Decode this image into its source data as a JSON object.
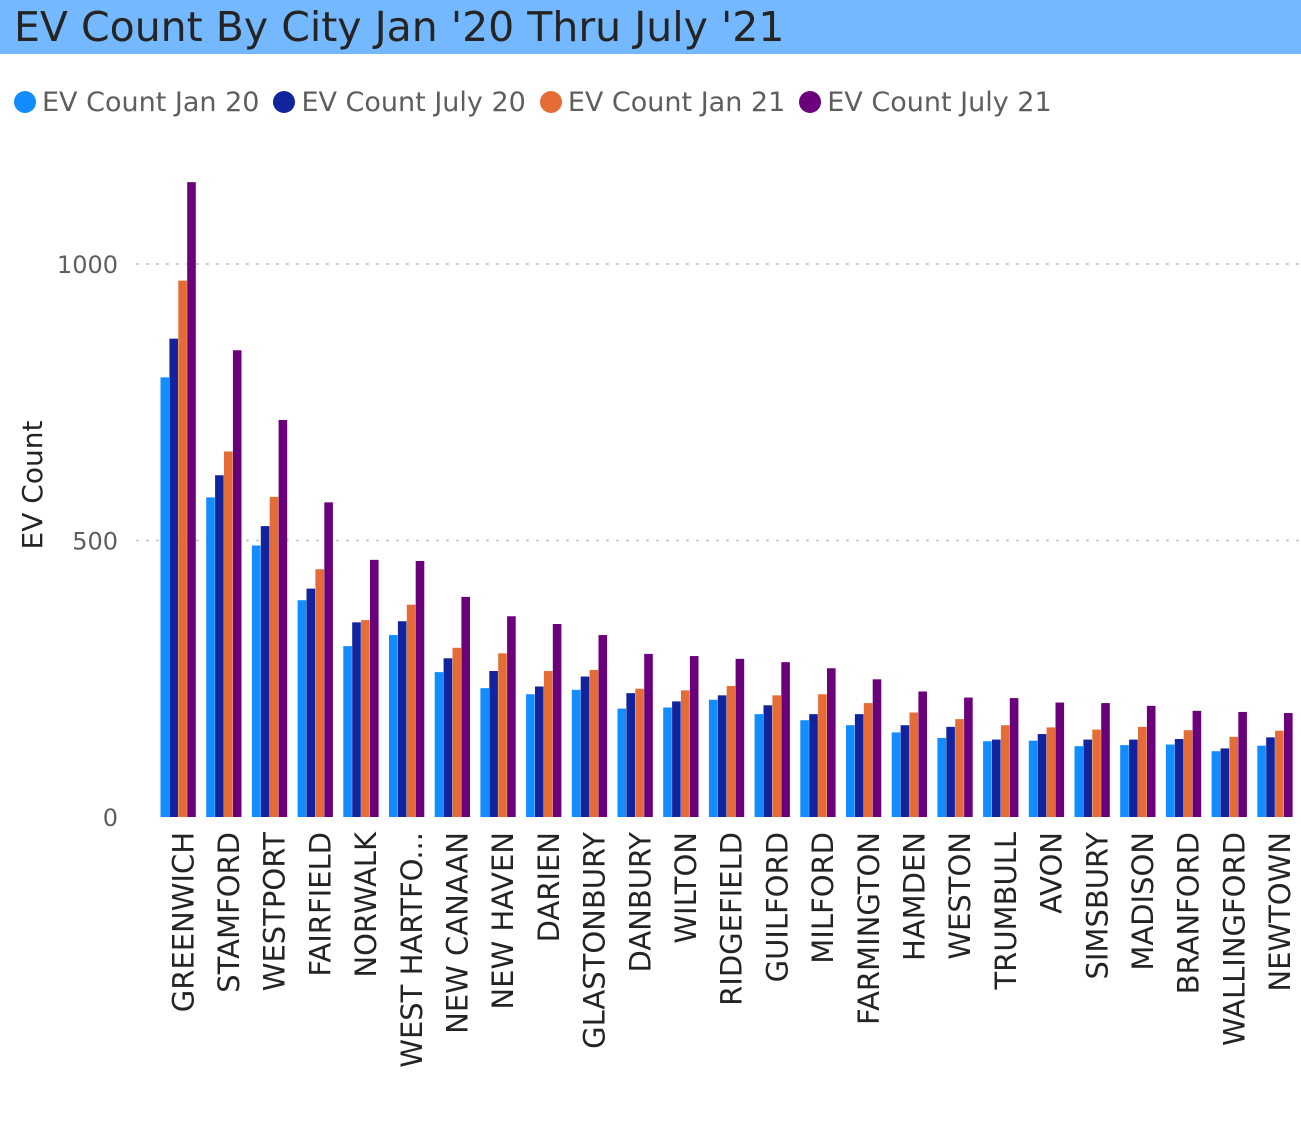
{
  "title": "EV Count By City Jan '20 Thru July '21",
  "colors": {
    "title_bar": "#74b9ff",
    "series": [
      "#118dff",
      "#12239e",
      "#e66c37",
      "#6b007b"
    ]
  },
  "chart_data": {
    "type": "bar",
    "title": "EV Count By City Jan '20 Thru July '21",
    "xlabel": "",
    "ylabel": "EV Count",
    "ylim": [
      0,
      1150
    ],
    "yticks": [
      0,
      500,
      1000
    ],
    "grid": true,
    "legend": "top-left",
    "categories": [
      "GREENWICH",
      "STAMFORD",
      "WESTPORT",
      "FAIRFIELD",
      "NORWALK",
      "WEST HARTFO...",
      "NEW CANAAN",
      "NEW HAVEN",
      "DARIEN",
      "GLASTONBURY",
      "DANBURY",
      "WILTON",
      "RIDGEFIELD",
      "GUILFORD",
      "MILFORD",
      "FARMINGTON",
      "HAMDEN",
      "WESTON",
      "TRUMBULL",
      "AVON",
      "SIMSBURY",
      "MADISON",
      "BRANFORD",
      "WALLINGFORD",
      "NEWTOWN"
    ],
    "series": [
      {
        "name": "EV Count Jan 20",
        "values": [
          795,
          578,
          491,
          392,
          309,
          329,
          262,
          233,
          222,
          230,
          196,
          198,
          212,
          186,
          175,
          166,
          153,
          143,
          137,
          138,
          128,
          130,
          131,
          119,
          129
        ]
      },
      {
        "name": "EV Count July 20",
        "values": [
          865,
          618,
          526,
          413,
          352,
          354,
          287,
          264,
          236,
          254,
          224,
          209,
          220,
          202,
          186,
          186,
          166,
          163,
          140,
          150,
          140,
          140,
          141,
          124,
          144
        ]
      },
      {
        "name": "EV Count Jan 21",
        "values": [
          970,
          661,
          579,
          448,
          356,
          384,
          306,
          296,
          264,
          266,
          232,
          229,
          237,
          220,
          222,
          206,
          189,
          177,
          166,
          162,
          158,
          163,
          157,
          145,
          156
        ]
      },
      {
        "name": "EV Count July 21",
        "values": [
          1148,
          844,
          718,
          569,
          465,
          463,
          398,
          363,
          349,
          329,
          295,
          291,
          286,
          280,
          269,
          249,
          227,
          216,
          215,
          207,
          206,
          201,
          192,
          190,
          188
        ]
      }
    ]
  }
}
